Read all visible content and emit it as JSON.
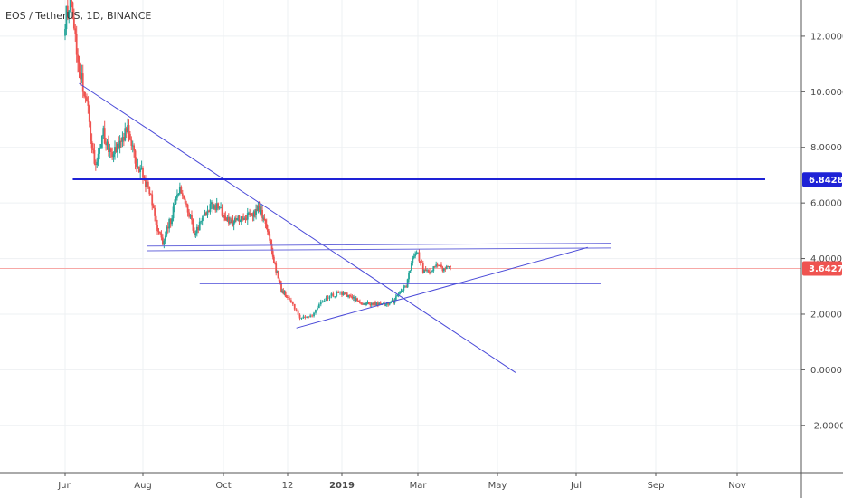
{
  "chart_title": "EOS / TetherUS, 1D, BINANCE",
  "colors": {
    "up": "#26a69a",
    "down": "#ef5350",
    "drawing": "#4a4ad8",
    "support_line": "#1e22d6",
    "grid": "#eef0f3",
    "axis_line": "#555555",
    "price_line": "#f7a8a6"
  },
  "chart_data": {
    "type": "candlestick",
    "title": "EOS / TetherUS, 1D, BINANCE",
    "x_ticks": [
      "Jun",
      "Aug",
      "Oct",
      "12",
      "2019",
      "Mar",
      "May",
      "Jul",
      "Sep",
      "Nov"
    ],
    "y_ticks": [
      "12.0000",
      "10.0000",
      "8.0000",
      "6.0000",
      "4.0000",
      "2.0000",
      "0.0000",
      "-2.0000"
    ],
    "y_tick_values": [
      12,
      10,
      8,
      6,
      4,
      2,
      0,
      -2
    ],
    "ylim": [
      -3.7,
      13.3
    ],
    "grid": true,
    "x_tick_dates": [
      "2018-06-01",
      "2018-08-01",
      "2018-10-01",
      "2018-12-01",
      "2019-01-01",
      "2019-03-01",
      "2019-05-01",
      "2019-07-01",
      "2019-09-01",
      "2019-11-01"
    ],
    "price_anchors": [
      [
        "2018-06-01",
        12.6
      ],
      [
        "2018-06-05",
        13.4
      ],
      [
        "2018-06-12",
        10.6
      ],
      [
        "2018-06-17",
        10.0
      ],
      [
        "2018-06-24",
        7.3
      ],
      [
        "2018-07-01",
        8.5
      ],
      [
        "2018-07-08",
        7.6
      ],
      [
        "2018-07-15",
        8.4
      ],
      [
        "2018-07-20",
        8.6
      ],
      [
        "2018-07-26",
        7.5
      ],
      [
        "2018-08-01",
        7.0
      ],
      [
        "2018-08-07",
        6.2
      ],
      [
        "2018-08-12",
        5.0
      ],
      [
        "2018-08-16",
        4.6
      ],
      [
        "2018-08-22",
        5.4
      ],
      [
        "2018-08-29",
        6.6
      ],
      [
        "2018-09-03",
        6.0
      ],
      [
        "2018-09-09",
        4.9
      ],
      [
        "2018-09-18",
        5.6
      ],
      [
        "2018-09-22",
        6.0
      ],
      [
        "2018-10-01",
        5.6
      ],
      [
        "2018-10-10",
        5.3
      ],
      [
        "2018-10-22",
        5.5
      ],
      [
        "2018-11-04",
        5.8
      ],
      [
        "2018-11-10",
        5.3
      ],
      [
        "2018-11-15",
        4.5
      ],
      [
        "2018-11-20",
        3.6
      ],
      [
        "2018-11-25",
        2.9
      ],
      [
        "2018-12-01",
        2.6
      ],
      [
        "2018-12-08",
        1.9
      ],
      [
        "2018-12-15",
        1.9
      ],
      [
        "2018-12-20",
        2.4
      ],
      [
        "2018-12-25",
        2.7
      ],
      [
        "2019-01-01",
        2.75
      ],
      [
        "2019-01-10",
        2.6
      ],
      [
        "2019-01-15",
        2.4
      ],
      [
        "2019-02-01",
        2.35
      ],
      [
        "2019-02-10",
        2.45
      ],
      [
        "2019-02-15",
        2.8
      ],
      [
        "2019-02-20",
        3.0
      ],
      [
        "2019-02-24",
        3.9
      ],
      [
        "2019-02-28",
        4.25
      ],
      [
        "2019-03-05",
        3.6
      ],
      [
        "2019-03-10",
        3.45
      ],
      [
        "2019-03-15",
        3.75
      ],
      [
        "2019-03-20",
        3.65
      ],
      [
        "2019-03-26",
        3.64
      ]
    ],
    "horizontal_levels": [
      {
        "value": 6.8428,
        "label": "6.8428",
        "badge_color": "#1e22d6"
      },
      {
        "value": 3.6427,
        "label": "3.6427",
        "badge_color": "#ef5350"
      }
    ],
    "trendlines": [
      {
        "from": [
          "2018-06-12",
          10.3
        ],
        "to": [
          "2019-05-15",
          -0.1
        ],
        "color": "#4a4ad8",
        "width": 1
      },
      {
        "from": [
          "2018-06-07",
          6.85
        ],
        "to": [
          "2019-11-22",
          6.85
        ],
        "color": "#1e22d6",
        "width": 2
      },
      {
        "from": [
          "2018-08-04",
          4.45
        ],
        "to": [
          "2019-07-28",
          4.55
        ],
        "color": "#6a6adc",
        "width": 1
      },
      {
        "from": [
          "2018-08-04",
          4.28
        ],
        "to": [
          "2019-07-28",
          4.38
        ],
        "color": "#6a6adc",
        "width": 1
      },
      {
        "from": [
          "2018-09-13",
          3.1
        ],
        "to": [
          "2019-07-20",
          3.1
        ],
        "color": "#4a4ad8",
        "width": 1
      },
      {
        "from": [
          "2018-12-06",
          1.5
        ],
        "to": [
          "2019-07-10",
          4.4
        ],
        "color": "#4a4ad8",
        "width": 1
      }
    ]
  }
}
